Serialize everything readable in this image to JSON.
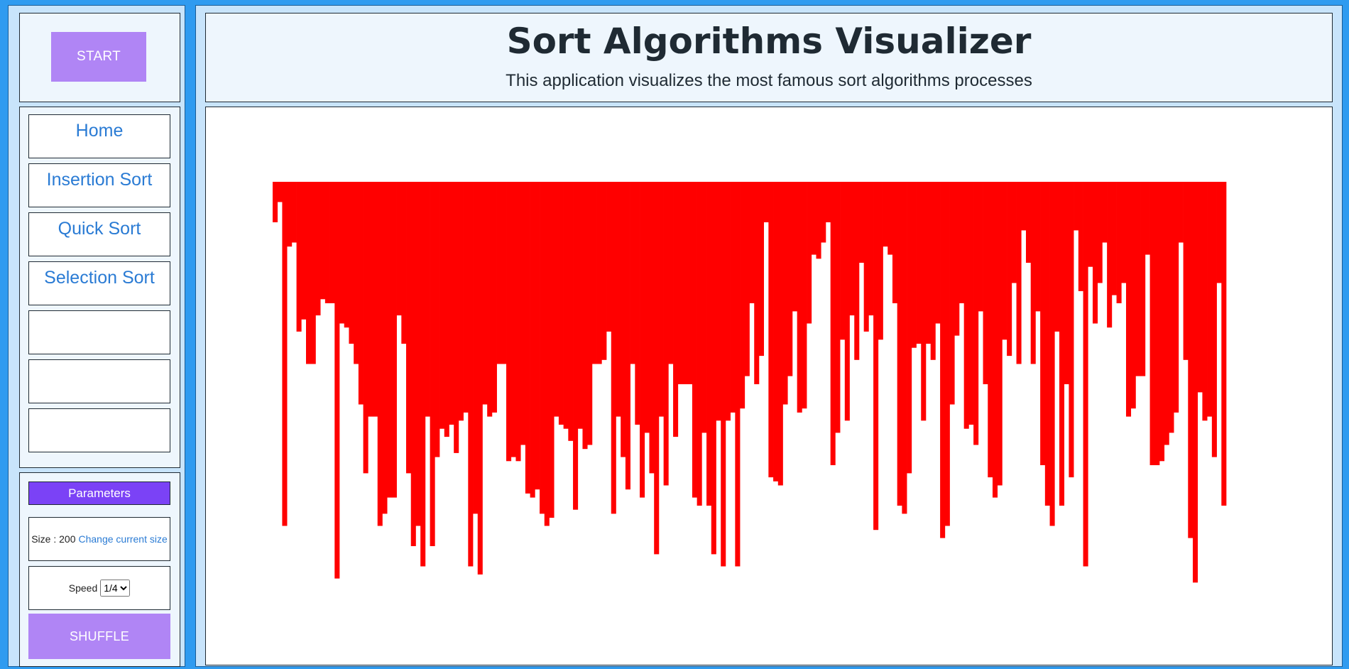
{
  "start_button": {
    "label": "START"
  },
  "nav": {
    "items": [
      {
        "label": "Home"
      },
      {
        "label": "Insertion Sort"
      },
      {
        "label": "Quick Sort"
      },
      {
        "label": "Selection Sort"
      },
      {
        "label": ""
      },
      {
        "label": ""
      },
      {
        "label": ""
      }
    ]
  },
  "parameters": {
    "header": "Parameters",
    "size_label": "Size : 200",
    "change_size_link": "Change current size",
    "speed_label": "Speed",
    "speed_selected": "1/4",
    "shuffle_label": "SHUFFLE"
  },
  "header": {
    "title": "Sort Algorithms Visualizer",
    "subtitle": "This application visualizes the most famous sort algorithms processes"
  },
  "colors": {
    "background": "#2f9bf0",
    "accent": "#b085f5",
    "parameters_header": "#7b42f6",
    "bar": "#ff0000",
    "link": "#2a7bd4"
  },
  "chart_data": {
    "type": "bar",
    "count": 200,
    "bar_color": "#ff0000",
    "values": [
      10,
      5,
      85,
      16,
      15,
      37,
      34,
      45,
      45,
      33,
      29,
      30,
      30,
      98,
      35,
      36,
      40,
      45,
      55,
      72,
      58,
      58,
      85,
      82,
      78,
      78,
      33,
      40,
      72,
      90,
      85,
      95,
      58,
      90,
      68,
      61,
      63,
      60,
      67,
      59,
      57,
      95,
      82,
      97,
      55,
      58,
      57,
      45,
      45,
      69,
      68,
      69,
      65,
      77,
      78,
      76,
      82,
      85,
      83,
      58,
      60,
      61,
      64,
      81,
      61,
      66,
      65,
      45,
      45,
      44,
      37,
      82,
      58,
      68,
      76,
      45,
      60,
      78,
      62,
      72,
      92,
      58,
      75,
      45,
      63,
      50,
      50,
      50,
      78,
      80,
      62,
      80,
      92,
      59,
      95,
      59,
      57,
      95,
      56,
      48,
      30,
      50,
      43,
      10,
      73,
      74,
      75,
      55,
      48,
      32,
      57,
      56,
      35,
      18,
      19,
      15,
      10,
      70,
      62,
      39,
      59,
      33,
      44,
      20,
      37,
      33,
      86,
      39,
      16,
      18,
      30,
      80,
      82,
      72,
      41,
      40,
      59,
      40,
      44,
      35,
      88,
      85,
      55,
      38,
      30,
      61,
      60,
      65,
      32,
      50,
      73,
      78,
      75,
      39,
      43,
      25,
      45,
      12,
      20,
      45,
      32,
      70,
      80,
      85,
      37,
      80,
      50,
      73,
      12,
      27,
      95,
      21,
      35,
      25,
      15,
      36,
      28,
      30,
      25,
      58,
      56,
      48,
      48,
      18,
      70,
      70,
      69,
      65,
      62,
      57,
      15,
      44,
      88,
      99,
      52,
      59,
      58,
      68,
      25,
      80
    ]
  }
}
